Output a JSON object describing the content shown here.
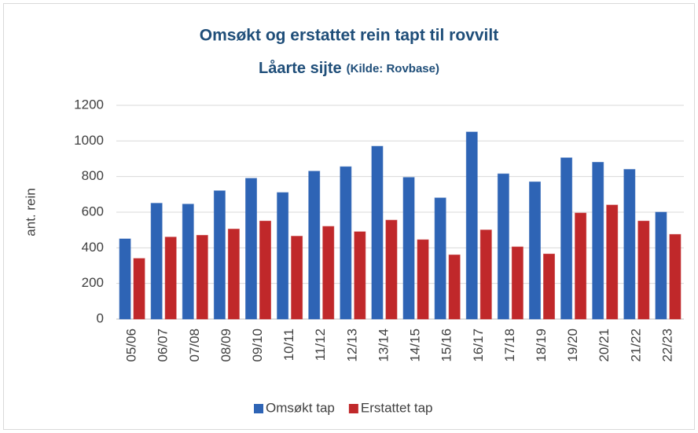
{
  "chart_data": {
    "type": "bar",
    "title": "Omsøkt og erstattet rein tapt til rovvilt",
    "subtitle": "Låarte sijte",
    "source": "(Kilde: Rovbase)",
    "y_label": "ant. rein",
    "categories": [
      "05/06",
      "06/07",
      "07/08",
      "08/09",
      "09/10",
      "10/11",
      "11/12",
      "12/13",
      "13/14",
      "14/15",
      "15/16",
      "16/17",
      "17/18",
      "18/19",
      "19/20",
      "20/21",
      "21/22",
      "22/23"
    ],
    "series": [
      {
        "name": "Omsøkt tap",
        "color": "#2e64b5",
        "values": [
          450,
          650,
          645,
          720,
          790,
          710,
          830,
          855,
          970,
          795,
          680,
          1050,
          815,
          770,
          905,
          880,
          840,
          600
        ]
      },
      {
        "name": "Erstattet tap",
        "color": "#c0282a",
        "values": [
          340,
          460,
          470,
          505,
          550,
          465,
          520,
          490,
          555,
          445,
          360,
          500,
          405,
          365,
          595,
          640,
          550,
          475
        ]
      }
    ],
    "ylim": [
      0,
      1200
    ],
    "yticks": [
      0,
      200,
      400,
      600,
      800,
      1000,
      1200
    ],
    "grid": true,
    "legend": "bottom"
  }
}
